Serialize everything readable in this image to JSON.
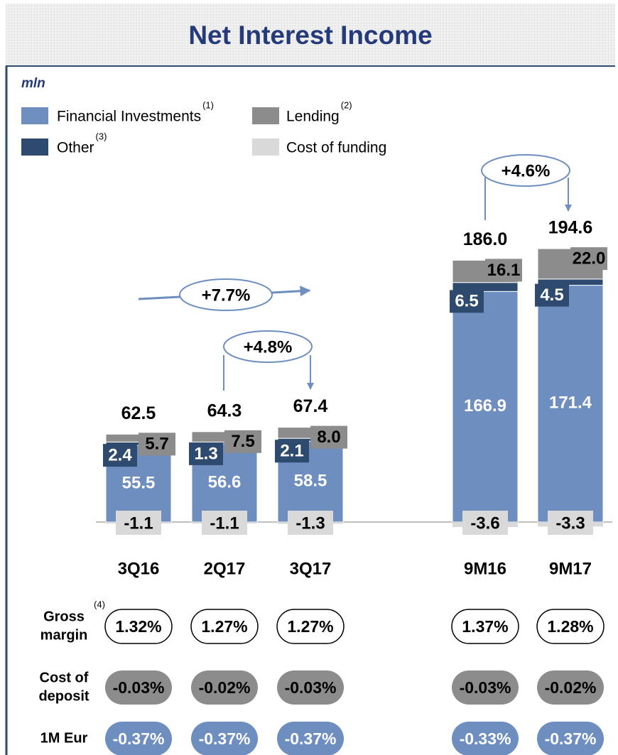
{
  "chart_data": {
    "type": "stacked_bar",
    "title": "Net Interest Income",
    "unit_label": "mln",
    "categories": [
      "3Q16",
      "2Q17",
      "3Q17",
      "9M16",
      "9M17"
    ],
    "series": [
      {
        "name": "Financial Investments",
        "note": "(1)",
        "color": "#6d8ebf",
        "values": [
          55.5,
          56.6,
          58.5,
          166.9,
          171.4
        ]
      },
      {
        "name": "Other",
        "note": "(3)",
        "color": "#2e4a6e",
        "values": [
          2.4,
          1.3,
          2.1,
          6.5,
          4.5
        ]
      },
      {
        "name": "Lending",
        "note": "(2)",
        "color": "#8c8c8c",
        "values": [
          5.7,
          7.5,
          8.0,
          16.1,
          22.0
        ],
        "value_labels": [
          "5.7",
          "7.5",
          "8.0",
          "16.1",
          "22.0"
        ]
      },
      {
        "name": "Cost of funding",
        "color": "#d9d9d9",
        "values": [
          -1.1,
          -1.1,
          -1.3,
          -3.6,
          -3.3
        ]
      }
    ],
    "totals": {
      "values": [
        62.5,
        64.3,
        67.4,
        186.0,
        194.6
      ],
      "value_labels": [
        "62.5",
        "64.3",
        "67.4",
        "186.0",
        "194.6"
      ]
    },
    "annotations": [
      "+7.7%",
      "+4.8%",
      "+4.6%"
    ],
    "margins": {
      "rows": [
        {
          "label": [
            "Gross",
            "margin"
          ],
          "note": "(4)",
          "values": [
            "1.32%",
            "1.27%",
            "1.27%",
            "1.37%",
            "1.28%"
          ]
        },
        {
          "label": [
            "Cost of",
            "deposit"
          ],
          "values": [
            "-0.03%",
            "-0.02%",
            "-0.03%",
            "-0.03%",
            "-0.02%"
          ]
        },
        {
          "label": [
            "1M Eur"
          ],
          "values": [
            "-0.37%",
            "-0.37%",
            "-0.37%",
            "-0.33%",
            "-0.37%"
          ]
        }
      ]
    }
  }
}
